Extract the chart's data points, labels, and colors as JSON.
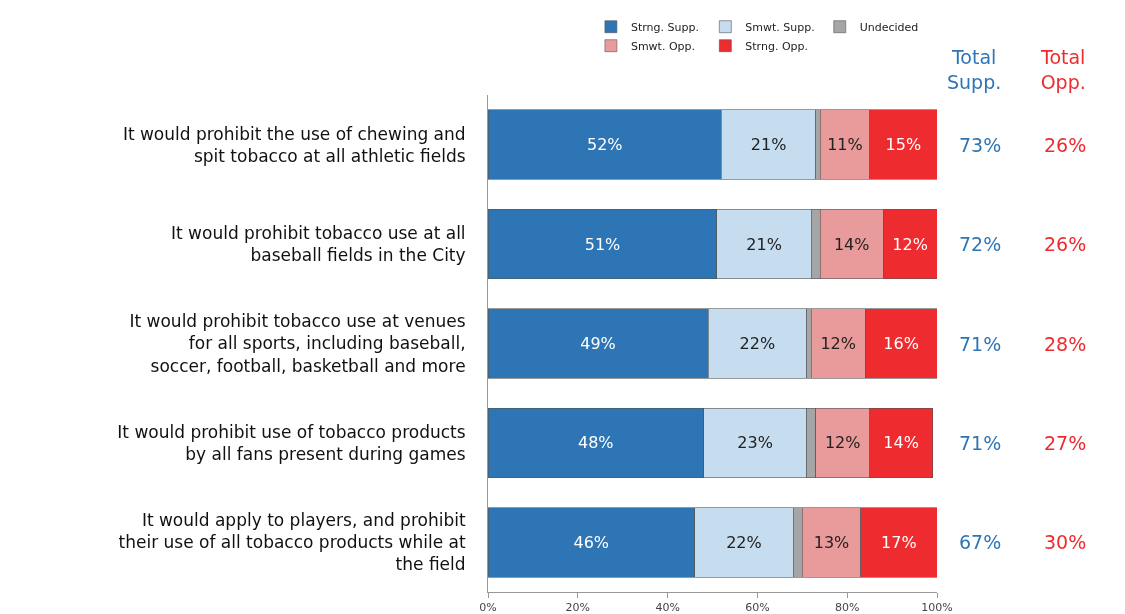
{
  "chart_data": {
    "type": "bar",
    "orientation": "horizontal",
    "stacked": true,
    "categories": [
      "It would prohibit the use of chewing and spit tobacco at all athletic fields",
      "It would prohibit tobacco use at all baseball fields in the City",
      "It would prohibit tobacco use at venues for all sports, including baseball, soccer, football, basketball and more",
      "It would prohibit use of tobacco products by all fans present during games",
      "It would apply to players, and prohibit their use of all tobacco products while at the field"
    ],
    "series": [
      {
        "name": "Strng. Supp.",
        "color": "#2e75b6",
        "values": [
          52,
          51,
          49,
          48,
          46
        ],
        "value_labels": [
          "52%",
          "51%",
          "49%",
          "48%",
          "46%"
        ]
      },
      {
        "name": "Smwt. Supp.",
        "color": "#c6dcef",
        "values": [
          21,
          21,
          22,
          23,
          22
        ],
        "value_labels": [
          "21%",
          "21%",
          "22%",
          "23%",
          "22%"
        ]
      },
      {
        "name": "Undecided",
        "color": "#a5a5a5",
        "values": [
          1,
          2,
          1,
          2,
          2
        ],
        "value_labels": [
          null,
          null,
          null,
          null,
          null
        ]
      },
      {
        "name": "Smwt. Opp.",
        "color": "#e99a9a",
        "values": [
          11,
          14,
          12,
          12,
          13
        ],
        "value_labels": [
          "11%",
          "14%",
          "12%",
          "12%",
          "13%"
        ]
      },
      {
        "name": "Strng. Opp.",
        "color": "#ee2b2f",
        "values": [
          15,
          12,
          16,
          14,
          17
        ],
        "value_labels": [
          "15%",
          "12%",
          "16%",
          "14%",
          "17%"
        ]
      }
    ],
    "xlim": [
      0,
      100
    ],
    "xticks": [
      {
        "value": 0,
        "label": "0%"
      },
      {
        "value": 20,
        "label": "20%"
      },
      {
        "value": 40,
        "label": "40%"
      },
      {
        "value": 60,
        "label": "60%"
      },
      {
        "value": 80,
        "label": "80%"
      },
      {
        "value": 100,
        "label": "100%"
      }
    ],
    "grid": false,
    "legend": "top",
    "annotations": [
      "Total Supp.",
      "Total Opp.",
      "73%",
      "26%",
      "72%",
      "26%",
      "71%",
      "28%",
      "71%",
      "27%",
      "67%",
      "30%"
    ]
  }
}
